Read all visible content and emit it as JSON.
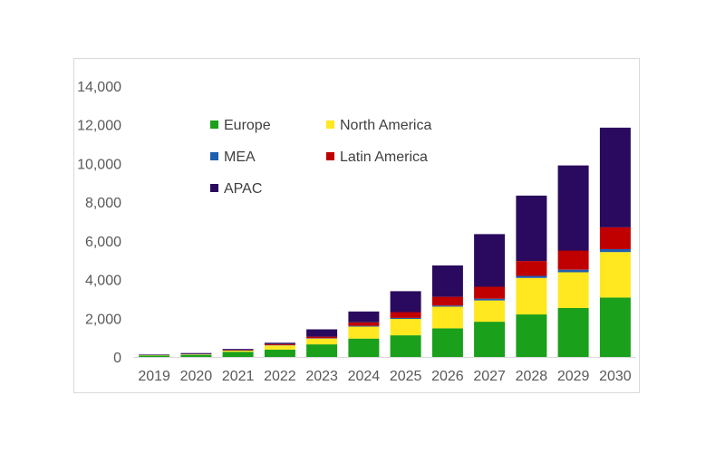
{
  "chart_data": {
    "type": "bar",
    "stacked": true,
    "title": "",
    "xlabel": "",
    "ylabel": "",
    "ylim": [
      0,
      14000
    ],
    "y_ticks": [
      "0",
      "2,000",
      "4,000",
      "6,000",
      "8,000",
      "10,000",
      "12,000",
      "14,000"
    ],
    "y_tick_values": [
      0,
      2000,
      4000,
      6000,
      8000,
      10000,
      12000,
      14000
    ],
    "grid": false,
    "legend_position": "inside top-left",
    "categories": [
      "2019",
      "2020",
      "2021",
      "2022",
      "2023",
      "2024",
      "2025",
      "2026",
      "2027",
      "2028",
      "2029",
      "2030"
    ],
    "series": [
      {
        "name": "Europe",
        "color": "#1aa01a",
        "values": [
          70,
          110,
          270,
          380,
          650,
          950,
          1120,
          1480,
          1820,
          2200,
          2530,
          3070
        ]
      },
      {
        "name": "North America",
        "color": "#ffe81f",
        "values": [
          20,
          25,
          60,
          220,
          300,
          620,
          850,
          1120,
          1100,
          1880,
          1850,
          2350
        ]
      },
      {
        "name": "MEA",
        "color": "#1f5fb0",
        "values": [
          3,
          5,
          8,
          15,
          20,
          40,
          50,
          60,
          90,
          110,
          130,
          150
        ]
      },
      {
        "name": "Latin America",
        "color": "#c00000",
        "values": [
          5,
          10,
          15,
          50,
          80,
          180,
          300,
          450,
          620,
          770,
          990,
          1130
        ]
      },
      {
        "name": "APAC",
        "color": "#2a0a5e",
        "values": [
          30,
          50,
          60,
          70,
          380,
          560,
          1080,
          1620,
          2720,
          3380,
          4400,
          5150
        ]
      }
    ],
    "legend_layout": [
      [
        "Europe",
        "North America"
      ],
      [
        "MEA",
        "Latin America"
      ],
      [
        "APAC"
      ]
    ]
  }
}
